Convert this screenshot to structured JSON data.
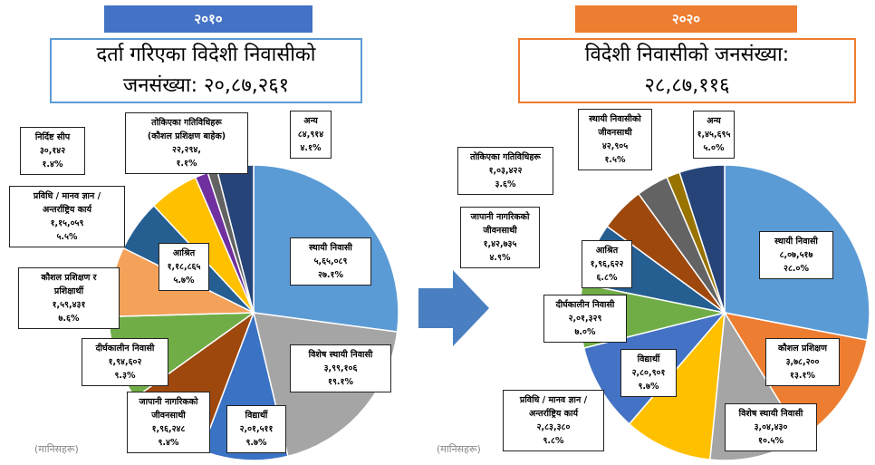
{
  "chart_data": [
    {
      "type": "pie",
      "title": "२०१०",
      "subtitle": "दर्ता गरिएका विदेशी निवासीको\nजनसंख्या: २०,८७,२६१",
      "note": "(मानिसहरू)",
      "categories": [
        "स्थायी निवासी",
        "विशेष स्थायी निवासी",
        "विद्यार्थी",
        "जापानी नागरिकको\nजीवनसाथी",
        "दीर्घकालीन निवासी",
        "कौशल प्रशिक्षण र\nप्रशिक्षार्थी",
        "आश्रित",
        "प्रविधि / मानव ज्ञान /\nअन्तर्राष्ट्रिय कार्य",
        "निर्दिष्ट सीप",
        "तोकिएका गतिविधिहरू\n(कौशल प्रशिक्षण बाहेक)",
        "अन्य"
      ],
      "values": [
        565089,
        399106,
        201511,
        196248,
        194602,
        159431,
        118865,
        115059,
        30142,
        22294,
        84914
      ],
      "value_labels": [
        "५,६५,०८९",
        "३,९९,१०६",
        "२,०१,५११",
        "१,९६,२४८",
        "१,९४,६०२",
        "१,५९,४३१",
        "१,१८,८६५",
        "१,१५,०५९",
        "३०,१४२",
        "२२,२९४,",
        "८४,९१४"
      ],
      "percents": [
        27.1,
        19.1,
        9.7,
        9.4,
        9.3,
        7.6,
        5.7,
        5.5,
        1.4,
        1.1,
        4.1
      ],
      "percent_labels": [
        "२७.१%",
        "१९.१%",
        "९.७%",
        "९.४%",
        "९.३%",
        "७.६%",
        "५.७%",
        "५.५%",
        "१.४%",
        "१.१%",
        "४.१%"
      ],
      "colors": [
        "#5b9bd5",
        "#a5a5a5",
        "#3a72c4",
        "#9e480e",
        "#70ad47",
        "#f4a15a",
        "#255e91",
        "#ffc000",
        "#7030a0",
        "#636363",
        "#264478"
      ]
    },
    {
      "type": "pie",
      "title": "२०२०",
      "subtitle": "विदेशी निवासीको जनसंख्या:\n२८,८७,११६",
      "note": "(मानिसहरू)",
      "categories": [
        "स्थायी निवासी",
        "कौशल प्रशिक्षण",
        "विशेष स्थायी निवासी",
        "प्रविधि / मानव ज्ञान /\nअन्तर्राष्ट्रिय कार्य",
        "विद्यार्थी",
        "दीर्घकालीन निवासी",
        "आश्रित",
        "जापानी नागरिकको\nजीवनसाथी",
        "तोकिएका गतिविधिहरू",
        "स्थायी निवासीको\nजीवनसाथी",
        "अन्य"
      ],
      "values": [
        807517,
        378200,
        304430,
        283380,
        280901,
        201329,
        196622,
        142735,
        103422,
        42905,
        145695
      ],
      "value_labels": [
        "८,०७,५१७",
        "३,७८,२००",
        "३,०४,४३०",
        "२,८३,३८०",
        "२,८०,९०१",
        "२,०१,३२९",
        "१,९६,६२२",
        "१,४२,७३५",
        "१,०३,४२२",
        "४२,९०५",
        "१,४५,६९५"
      ],
      "percents": [
        28.0,
        13.1,
        10.5,
        9.8,
        9.7,
        7.0,
        6.8,
        4.9,
        3.6,
        1.5,
        5.0
      ],
      "percent_labels": [
        "२८.०%",
        "१३.१%",
        "१०.५%",
        "९.८%",
        "९.७%",
        "७.०%",
        "६.८%",
        "४.९%",
        "३.६%",
        "१.५%",
        "५.०%"
      ],
      "colors": [
        "#5b9bd5",
        "#ed7d31",
        "#a5a5a5",
        "#ffc000",
        "#4472c4",
        "#70ad47",
        "#255e91",
        "#9e480e",
        "#636363",
        "#997300",
        "#264478"
      ]
    }
  ]
}
